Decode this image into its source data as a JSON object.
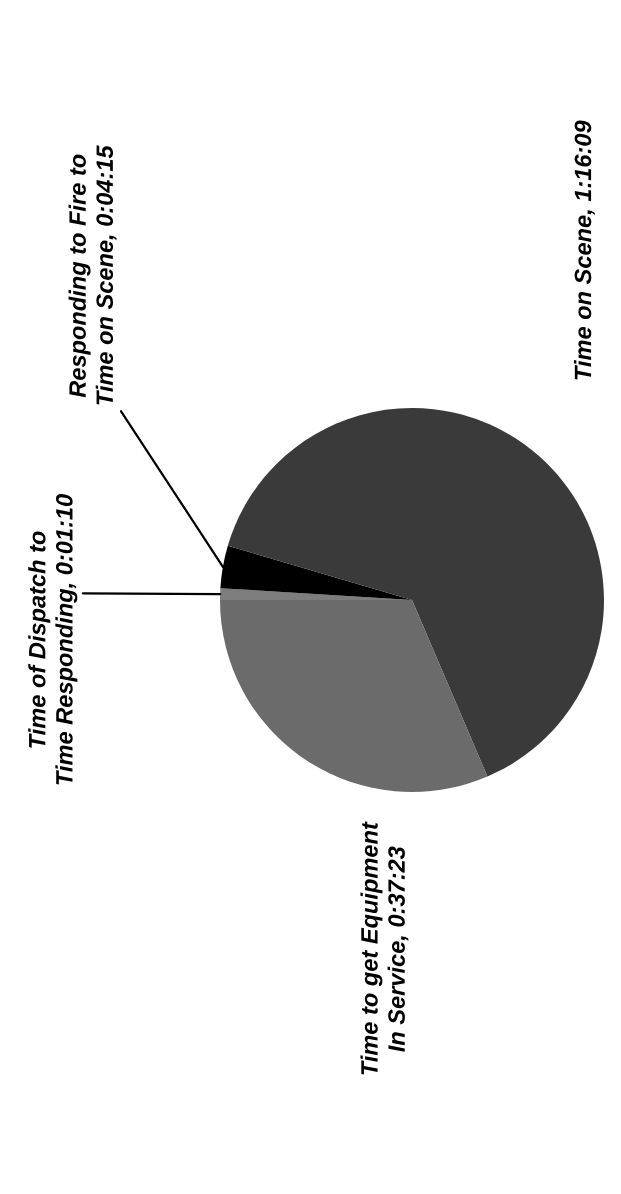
{
  "chart_data": {
    "type": "pie",
    "categories": [
      "Time of Dispatch to\nTime Responding",
      "Responding to Fire to\nTime on Scene",
      "Time on Scene",
      "Time to get Equipment\nIn Service"
    ],
    "values": [
      70,
      255,
      4569,
      2243
    ],
    "value_labels": [
      "0:01:10",
      "0:04:15",
      "1:16:09",
      "0:37:23"
    ],
    "colors": [
      "#7d7d7d",
      "#000000",
      "#3a3a3a",
      "#6b6b6b"
    ]
  }
}
